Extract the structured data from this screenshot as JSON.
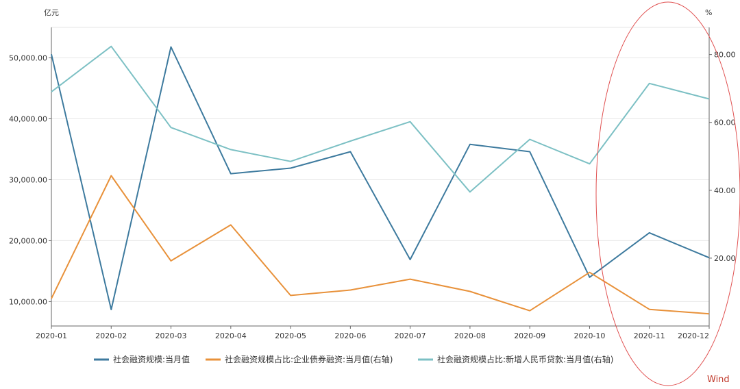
{
  "chart_data": {
    "type": "line",
    "title": "",
    "categories": [
      "2020-01",
      "2020-02",
      "2020-03",
      "2020-04",
      "2020-05",
      "2020-06",
      "2020-07",
      "2020-08",
      "2020-09",
      "2020-10",
      "2020-11",
      "2020-12"
    ],
    "left_axis": {
      "unit": "亿元",
      "ylim": [
        6000,
        55000
      ],
      "ticks": [
        10000,
        20000,
        30000,
        40000,
        50000
      ],
      "tick_labels": [
        "10,000.00",
        "20,000.00",
        "30,000.00",
        "40,000.00",
        "50,000.00"
      ]
    },
    "right_axis": {
      "unit": "%",
      "ylim": [
        0,
        88
      ],
      "ticks": [
        20,
        40,
        60,
        80
      ],
      "tick_labels": [
        "20.00",
        "40.00",
        "60.00",
        "80.00"
      ]
    },
    "grid": true,
    "legend_position": "bottom",
    "series": [
      {
        "name": "社会融资规模:当月值",
        "axis": "left",
        "color": "#3d7a9e",
        "values": [
          50600,
          8700,
          51800,
          31000,
          31900,
          34600,
          16900,
          35800,
          34600,
          14000,
          21300,
          17200
        ]
      },
      {
        "name": "社会融资规模占比:企业债券融资:当月值(右轴)",
        "axis": "right",
        "color": "#e8913a",
        "values": [
          8.1,
          44.3,
          19.2,
          29.8,
          9.0,
          10.6,
          13.8,
          10.2,
          4.5,
          15.8,
          4.9,
          3.6
        ]
      },
      {
        "name": "社会融资规模占比:新增人民币贷款:当月值(右轴)",
        "axis": "right",
        "color": "#7cc0c4",
        "values": [
          69.0,
          82.4,
          58.5,
          52.0,
          48.5,
          54.5,
          60.2,
          39.5,
          55.0,
          47.8,
          71.5,
          66.9
        ]
      }
    ],
    "watermark": "Wind",
    "annotation": {
      "shape": "ellipse",
      "color": "#e05050",
      "around": [
        "2020-11",
        "2020-12"
      ]
    }
  }
}
